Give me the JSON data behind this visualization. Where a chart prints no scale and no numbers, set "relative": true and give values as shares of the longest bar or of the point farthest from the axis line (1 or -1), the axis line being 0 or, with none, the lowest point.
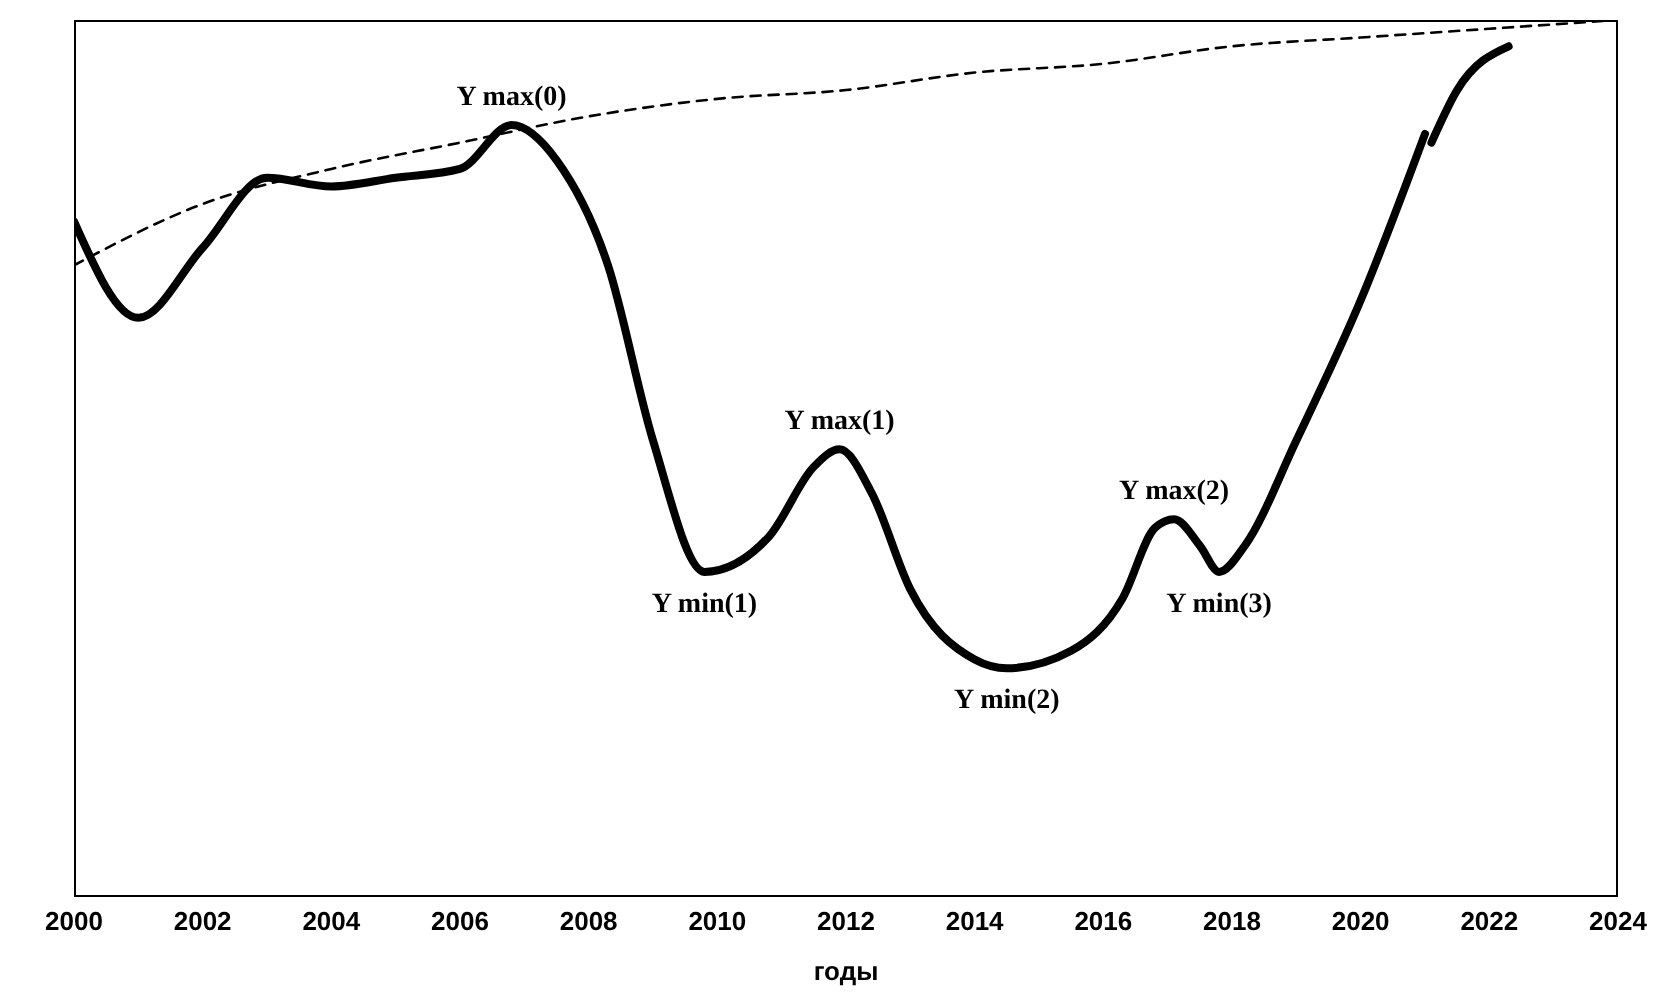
{
  "chart_data": {
    "type": "line",
    "relative": true,
    "xlabel": "годы",
    "xlim": [
      2000,
      2024
    ],
    "xticks": [
      2000,
      2002,
      2004,
      2006,
      2008,
      2010,
      2012,
      2014,
      2016,
      2018,
      2020,
      2022,
      2024
    ],
    "grid": false,
    "legend": false,
    "marker": "none",
    "series": [
      {
        "color": "#000000",
        "line_style": "solid",
        "x": [
          2000,
          2001,
          2002,
          2003,
          2004,
          2005,
          2006,
          2006.8,
          2007.5,
          2008.3,
          2009,
          2009.8,
          2010.8,
          2011.5,
          2011.9,
          2012.4,
          2013,
          2014,
          2014.5,
          2015.5,
          2016.3,
          2016.8,
          2017.1,
          2017.5,
          2017.8,
          2018.2,
          2019,
          2020,
          2021
        ],
        "values": [
          0.77,
          0.66,
          0.74,
          0.82,
          0.81,
          0.82,
          0.83,
          0.88,
          0.84,
          0.72,
          0.52,
          0.37,
          0.41,
          0.49,
          0.51,
          0.46,
          0.35,
          0.27,
          0.26,
          0.28,
          0.34,
          0.42,
          0.43,
          0.4,
          0.37,
          0.4,
          0.52,
          0.68,
          0.87
        ]
      },
      {
        "color": "#000000",
        "line_style": "solid",
        "x": [
          2021.1,
          2021.5,
          2022.3
        ],
        "values": [
          0.86,
          0.92,
          0.97
        ]
      },
      {
        "color": "#000000",
        "line_style": "dashed",
        "x": [
          2000,
          2002,
          2004,
          2006,
          2008,
          2010,
          2012,
          2014,
          2016,
          2018,
          2020,
          2022,
          2024
        ],
        "values": [
          0.72,
          0.79,
          0.83,
          0.86,
          0.89,
          0.91,
          0.92,
          0.94,
          0.95,
          0.97,
          0.98,
          0.99,
          1
        ]
      }
    ],
    "annotations": [
      {
        "text": "Y max(0)",
        "x": 2006.8,
        "y": 0.88
      },
      {
        "text": "Y min(1)",
        "x": 2009.8,
        "y": 0.37
      },
      {
        "text": "Y max(1)",
        "x": 2011.9,
        "y": 0.51
      },
      {
        "text": "Y min(2)",
        "x": 2014.5,
        "y": 0.26
      },
      {
        "text": "Y max(2)",
        "x": 2017.1,
        "y": 0.43
      },
      {
        "text": "Y min(3)",
        "x": 2017.8,
        "y": 0.37
      }
    ]
  }
}
